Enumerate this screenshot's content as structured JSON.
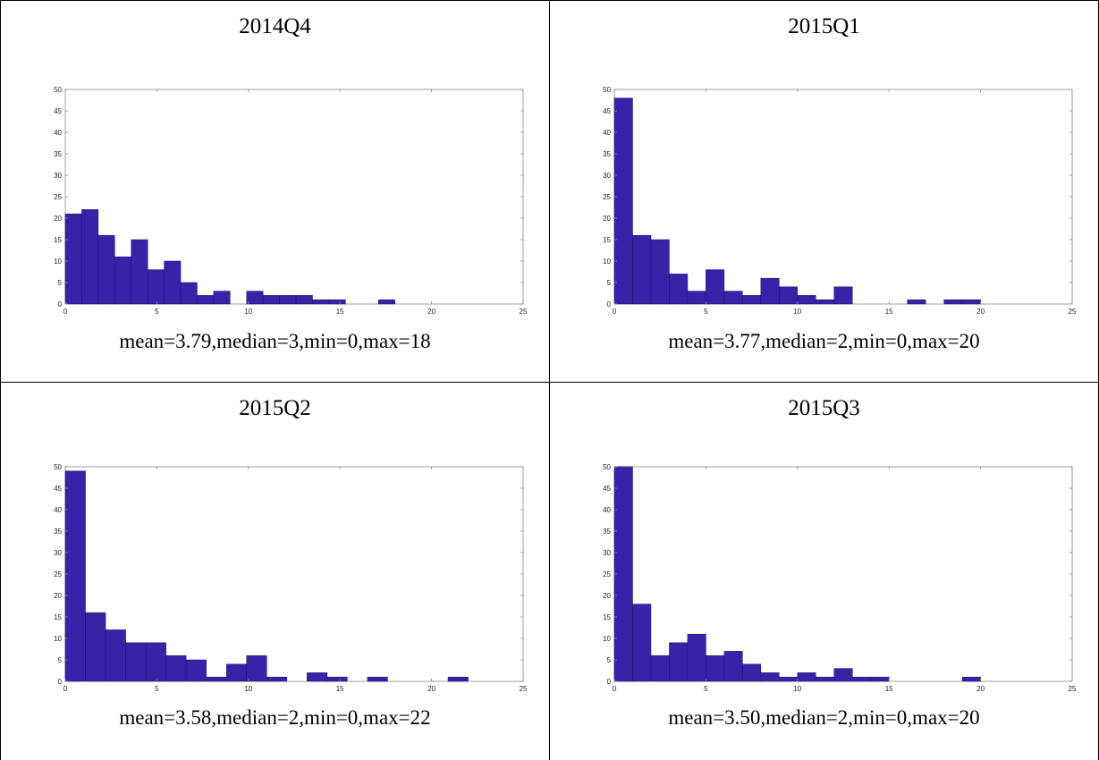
{
  "colors": {
    "bar_fill": "#3a22a8",
    "bar_edge": "#1a0f66",
    "axis": "#888888",
    "border": "#000000"
  },
  "panels": [
    {
      "title": "2014Q4",
      "caption": "mean=3.79,median=3,min=0,max=18"
    },
    {
      "title": "2015Q1",
      "caption": "mean=3.77,median=2,min=0,max=20"
    },
    {
      "title": "2015Q2",
      "caption": "mean=3.58,median=2,min=0,max=22"
    },
    {
      "title": "2015Q3",
      "caption": "mean=3.50,median=2,min=0,max=20"
    }
  ],
  "chart_data": [
    {
      "type": "bar",
      "title": "2014Q4",
      "xlim": [
        0,
        25
      ],
      "ylim": [
        0,
        50
      ],
      "xticks": [
        0,
        5,
        10,
        15,
        20,
        25
      ],
      "yticks": [
        0,
        5,
        10,
        15,
        20,
        25,
        30,
        35,
        40,
        45,
        50
      ],
      "bin_width": 0.9,
      "bins_start": 0,
      "values": [
        21,
        22,
        16,
        11,
        15,
        8,
        10,
        5,
        2,
        3,
        0,
        3,
        2,
        2,
        2,
        1,
        1,
        0,
        0,
        1
      ]
    },
    {
      "type": "bar",
      "title": "2015Q1",
      "xlim": [
        0,
        25
      ],
      "ylim": [
        0,
        50
      ],
      "xticks": [
        0,
        5,
        10,
        15,
        20,
        25
      ],
      "yticks": [
        0,
        5,
        10,
        15,
        20,
        25,
        30,
        35,
        40,
        45,
        50
      ],
      "bin_width": 1.0,
      "bins_start": 0,
      "values": [
        48,
        16,
        15,
        7,
        3,
        8,
        3,
        2,
        6,
        4,
        2,
        1,
        4,
        0,
        0,
        0,
        1,
        0,
        1,
        1
      ]
    },
    {
      "type": "bar",
      "title": "2015Q2",
      "xlim": [
        0,
        25
      ],
      "ylim": [
        0,
        50
      ],
      "xticks": [
        0,
        5,
        10,
        15,
        20,
        25
      ],
      "yticks": [
        0,
        5,
        10,
        15,
        20,
        25,
        30,
        35,
        40,
        45,
        50
      ],
      "bin_width": 1.1,
      "bins_start": 0,
      "values": [
        49,
        16,
        12,
        9,
        9,
        6,
        5,
        1,
        4,
        6,
        1,
        0,
        2,
        1,
        0,
        1,
        0,
        0,
        0,
        1
      ]
    },
    {
      "type": "bar",
      "title": "2015Q3",
      "xlim": [
        0,
        25
      ],
      "ylim": [
        0,
        50
      ],
      "xticks": [
        0,
        5,
        10,
        15,
        20,
        25
      ],
      "yticks": [
        0,
        5,
        10,
        15,
        20,
        25,
        30,
        35,
        40,
        45,
        50
      ],
      "bin_width": 1.0,
      "bins_start": 0,
      "values": [
        50,
        18,
        6,
        9,
        11,
        6,
        7,
        4,
        2,
        1,
        2,
        1,
        3,
        1,
        1,
        0,
        0,
        0,
        0,
        1
      ]
    }
  ]
}
